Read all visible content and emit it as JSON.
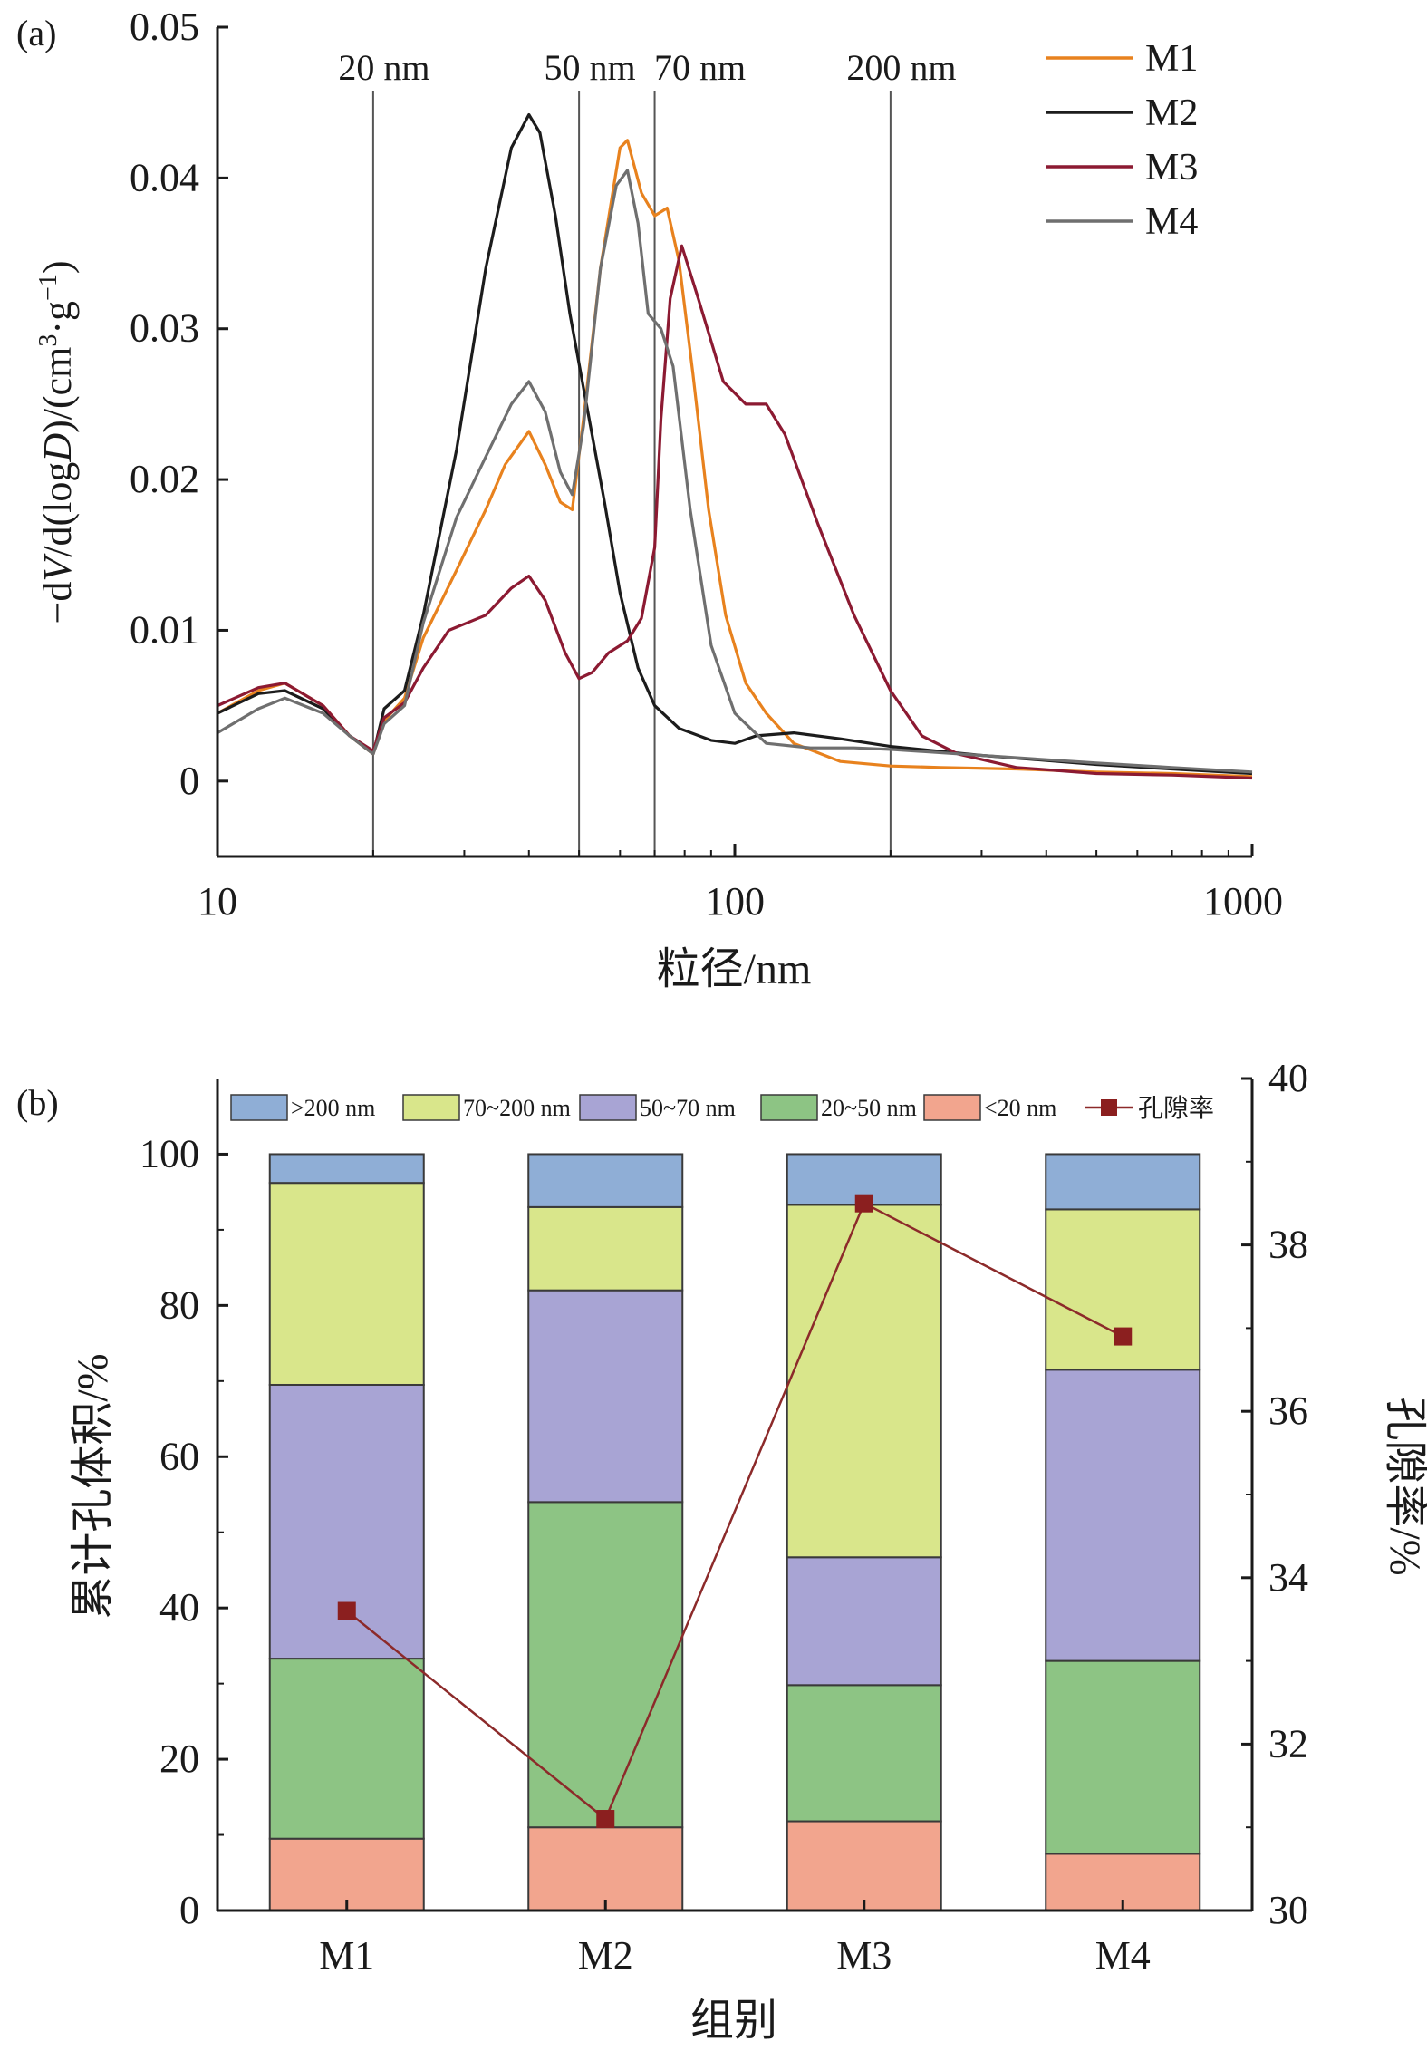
{
  "panel_a_label": "(a)",
  "panel_b_label": "(b)",
  "chart_data": [
    {
      "type": "line",
      "xscale": "log",
      "xlim": [
        10,
        1000
      ],
      "ylim": [
        -0.005,
        0.05
      ],
      "xlabel": "粒径/nm",
      "ylabel_parts": {
        "pre": "−d",
        "v": "V",
        "mid": "/d(log",
        "d": "D",
        "post1": ")/(cm",
        "sup1": "3",
        "post2": "·g",
        "sup2": "−1",
        "post3": ")"
      },
      "xticks": [
        {
          "v": 10,
          "label": "10"
        },
        {
          "v": 100,
          "label": "100"
        },
        {
          "v": 1000,
          "label": "1000"
        }
      ],
      "yticks": [
        {
          "v": 0,
          "label": "0"
        },
        {
          "v": 0.01,
          "label": "0.01"
        },
        {
          "v": 0.02,
          "label": "0.02"
        },
        {
          "v": 0.03,
          "label": "0.03"
        },
        {
          "v": 0.04,
          "label": "0.04"
        },
        {
          "v": 0.05,
          "label": "0.05"
        }
      ],
      "reference_lines": [
        {
          "x": 20,
          "label": "20 nm"
        },
        {
          "x": 50,
          "label": "50 nm"
        },
        {
          "x": 70,
          "label": "70 nm"
        },
        {
          "x": 200,
          "label": "200 nm"
        }
      ],
      "legend_position": "top-right",
      "series": [
        {
          "name": "M1",
          "color": "#e8821e",
          "points": [
            [
              10,
              0.0045
            ],
            [
              12,
              0.006
            ],
            [
              13.5,
              0.0065
            ],
            [
              16,
              0.005
            ],
            [
              18,
              0.003
            ],
            [
              20,
              0.0018
            ],
            [
              21,
              0.004
            ],
            [
              23,
              0.0055
            ],
            [
              25,
              0.0095
            ],
            [
              29,
              0.014
            ],
            [
              33,
              0.018
            ],
            [
              36,
              0.021
            ],
            [
              40,
              0.0232
            ],
            [
              43,
              0.021
            ],
            [
              46,
              0.0185
            ],
            [
              48.5,
              0.018
            ],
            [
              51,
              0.024
            ],
            [
              55,
              0.034
            ],
            [
              60,
              0.042
            ],
            [
              62,
              0.0425
            ],
            [
              66,
              0.039
            ],
            [
              70,
              0.0375
            ],
            [
              74,
              0.038
            ],
            [
              78,
              0.0345
            ],
            [
              83,
              0.027
            ],
            [
              89,
              0.018
            ],
            [
              96,
              0.011
            ],
            [
              105,
              0.0065
            ],
            [
              115,
              0.0045
            ],
            [
              130,
              0.0025
            ],
            [
              160,
              0.0013
            ],
            [
              200,
              0.001
            ],
            [
              250,
              0.0009
            ],
            [
              350,
              0.0008
            ],
            [
              500,
              0.0006
            ],
            [
              700,
              0.0005
            ],
            [
              1000,
              0.0003
            ]
          ]
        },
        {
          "name": "M2",
          "color": "#1c1c1c",
          "points": [
            [
              10,
              0.0045
            ],
            [
              12,
              0.0058
            ],
            [
              13.5,
              0.006
            ],
            [
              16,
              0.0048
            ],
            [
              18,
              0.003
            ],
            [
              20,
              0.0018
            ],
            [
              21,
              0.0048
            ],
            [
              23,
              0.006
            ],
            [
              25,
              0.011
            ],
            [
              29,
              0.022
            ],
            [
              33,
              0.034
            ],
            [
              37,
              0.042
            ],
            [
              40,
              0.0442
            ],
            [
              42,
              0.043
            ],
            [
              45,
              0.0375
            ],
            [
              48,
              0.031
            ],
            [
              52,
              0.0245
            ],
            [
              56,
              0.0185
            ],
            [
              60,
              0.0125
            ],
            [
              65,
              0.0075
            ],
            [
              70,
              0.005
            ],
            [
              78,
              0.0035
            ],
            [
              90,
              0.0027
            ],
            [
              100,
              0.0025
            ],
            [
              110,
              0.003
            ],
            [
              130,
              0.0032
            ],
            [
              160,
              0.0028
            ],
            [
              200,
              0.0023
            ],
            [
              300,
              0.0017
            ],
            [
              500,
              0.0011
            ],
            [
              700,
              0.0008
            ],
            [
              1000,
              0.0005
            ]
          ]
        },
        {
          "name": "M3",
          "color": "#8c1a32",
          "points": [
            [
              10,
              0.005
            ],
            [
              12,
              0.0062
            ],
            [
              13.5,
              0.0065
            ],
            [
              16,
              0.005
            ],
            [
              18,
              0.003
            ],
            [
              20,
              0.002
            ],
            [
              21,
              0.0042
            ],
            [
              23,
              0.0052
            ],
            [
              25,
              0.0075
            ],
            [
              28,
              0.01
            ],
            [
              33,
              0.011
            ],
            [
              37,
              0.0128
            ],
            [
              40,
              0.0136
            ],
            [
              43,
              0.012
            ],
            [
              47,
              0.0085
            ],
            [
              50,
              0.0068
            ],
            [
              53,
              0.0072
            ],
            [
              57,
              0.0085
            ],
            [
              62,
              0.0093
            ],
            [
              66,
              0.0108
            ],
            [
              70,
              0.0155
            ],
            [
              72,
              0.024
            ],
            [
              75,
              0.032
            ],
            [
              79,
              0.0355
            ],
            [
              85,
              0.032
            ],
            [
              95,
              0.0265
            ],
            [
              105,
              0.025
            ],
            [
              115,
              0.025
            ],
            [
              125,
              0.023
            ],
            [
              145,
              0.017
            ],
            [
              170,
              0.011
            ],
            [
              200,
              0.006
            ],
            [
              230,
              0.003
            ],
            [
              270,
              0.0018
            ],
            [
              350,
              0.0009
            ],
            [
              500,
              0.0005
            ],
            [
              700,
              0.0004
            ],
            [
              1000,
              0.0002
            ]
          ]
        },
        {
          "name": "M4",
          "color": "#6f6f6f",
          "points": [
            [
              10,
              0.0032
            ],
            [
              12,
              0.0048
            ],
            [
              13.5,
              0.0055
            ],
            [
              16,
              0.0045
            ],
            [
              18,
              0.003
            ],
            [
              20,
              0.0018
            ],
            [
              21,
              0.0038
            ],
            [
              23,
              0.005
            ],
            [
              25,
              0.0105
            ],
            [
              29,
              0.0175
            ],
            [
              33,
              0.0215
            ],
            [
              37,
              0.025
            ],
            [
              40,
              0.0265
            ],
            [
              43,
              0.0245
            ],
            [
              46,
              0.0205
            ],
            [
              48.5,
              0.019
            ],
            [
              51,
              0.0235
            ],
            [
              55,
              0.034
            ],
            [
              59,
              0.0395
            ],
            [
              62,
              0.0405
            ],
            [
              65,
              0.037
            ],
            [
              68,
              0.031
            ],
            [
              72,
              0.03
            ],
            [
              76,
              0.0275
            ],
            [
              82,
              0.018
            ],
            [
              90,
              0.009
            ],
            [
              100,
              0.0045
            ],
            [
              115,
              0.0025
            ],
            [
              140,
              0.0022
            ],
            [
              170,
              0.0022
            ],
            [
              200,
              0.0021
            ],
            [
              300,
              0.0017
            ],
            [
              500,
              0.0012
            ],
            [
              700,
              0.0009
            ],
            [
              1000,
              0.0006
            ]
          ]
        }
      ]
    },
    {
      "type": "bar",
      "stacked": true,
      "ylim": [
        0,
        110
      ],
      "y2lim": [
        30,
        40
      ],
      "xlabel": "组别",
      "ylabel": "累计孔体积/%",
      "y2label": "孔隙率/%",
      "categories": [
        "M1",
        "M2",
        "M3",
        "M4"
      ],
      "yticks": [
        {
          "v": 0,
          "label": "0"
        },
        {
          "v": 20,
          "label": "20"
        },
        {
          "v": 40,
          "label": "40"
        },
        {
          "v": 60,
          "label": "60"
        },
        {
          "v": 80,
          "label": "80"
        },
        {
          "v": 100,
          "label": "100"
        }
      ],
      "y2ticks": [
        {
          "v": 30,
          "label": "30"
        },
        {
          "v": 32,
          "label": "32"
        },
        {
          "v": 34,
          "label": "34"
        },
        {
          "v": 36,
          "label": "36"
        },
        {
          "v": 38,
          "label": "38"
        },
        {
          "v": 40,
          "label": "40"
        }
      ],
      "legend_position": "top",
      "series": [
        {
          "name": "<20 nm",
          "color": "#f2a58e",
          "values": [
            9.5,
            11,
            11.8,
            7.5
          ]
        },
        {
          "name": "20~50 nm",
          "color": "#8dc484",
          "values": [
            23.8,
            43,
            18,
            25.5
          ]
        },
        {
          "name": "50~70 nm",
          "color": "#a8a4d4",
          "values": [
            36.2,
            28,
            16.9,
            38.5
          ]
        },
        {
          "name": "70~200 nm",
          "color": "#d9e68b",
          "values": [
            26.7,
            11,
            46.6,
            21.2
          ]
        },
        {
          "name": ">200 nm",
          "color": "#8faed6",
          "values": [
            3.8,
            7,
            6.7,
            7.3
          ]
        }
      ],
      "legend_order": [
        4,
        3,
        2,
        1,
        0
      ],
      "line_series": {
        "name": "孔隙率",
        "color": "#8c2a2a",
        "marker_color": "#8b1f1f",
        "values": [
          33.6,
          31.1,
          38.5,
          36.9
        ]
      }
    }
  ]
}
